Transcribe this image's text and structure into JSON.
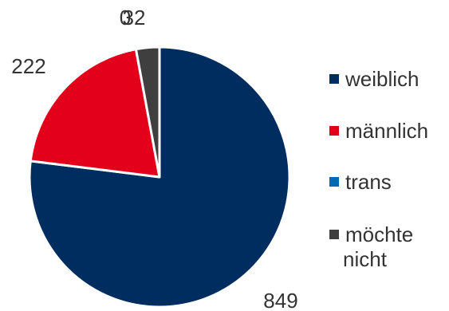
{
  "chart_data": {
    "type": "pie",
    "categories": [
      "weiblich",
      "männlich",
      "trans",
      "möchte nicht"
    ],
    "values": [
      849,
      222,
      0,
      32
    ],
    "data_labels": [
      "849",
      "222",
      "0",
      "32"
    ],
    "colors": [
      "#002d5f",
      "#e2001a",
      "#0069b4",
      "#3f3f3f"
    ],
    "legend": {
      "placement": "right",
      "entries": [
        {
          "lines": [
            "weiblich"
          ]
        },
        {
          "lines": [
            "männlich"
          ]
        },
        {
          "lines": [
            "trans"
          ]
        },
        {
          "lines": [
            "möchte",
            "nicht"
          ]
        }
      ]
    }
  }
}
